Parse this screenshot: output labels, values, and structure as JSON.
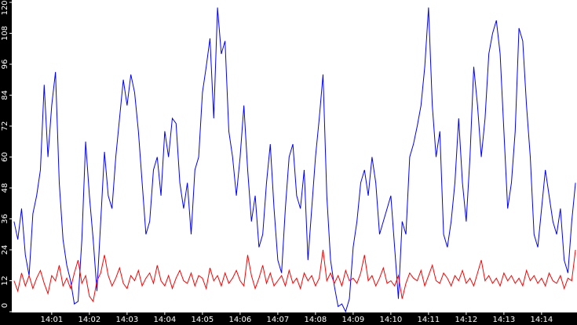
{
  "chart_data": {
    "type": "line",
    "x": [
      0,
      0.1,
      0.2,
      0.3,
      0.4,
      0.5,
      0.6,
      0.7,
      0.8,
      0.9,
      1,
      1.1,
      1.2,
      1.3,
      1.4,
      1.5,
      1.6,
      1.7,
      1.8,
      1.9,
      2,
      2.1,
      2.2,
      2.3,
      2.4,
      2.5,
      2.6,
      2.7,
      2.8,
      2.9,
      3,
      3.1,
      3.2,
      3.3,
      3.4,
      3.5,
      3.6,
      3.7,
      3.8,
      3.9,
      4,
      4.1,
      4.2,
      4.3,
      4.4,
      4.5,
      4.6,
      4.7,
      4.8,
      4.9,
      5,
      5.1,
      5.2,
      5.3,
      5.4,
      5.5,
      5.6,
      5.7,
      5.8,
      5.9,
      6,
      6.1,
      6.2,
      6.3,
      6.4,
      6.5,
      6.6,
      6.7,
      6.8,
      6.9,
      7,
      7.1,
      7.2,
      7.3,
      7.4,
      7.5,
      7.6,
      7.7,
      7.8,
      7.9,
      8,
      8.1,
      8.2,
      8.3,
      8.4,
      8.5,
      8.6,
      8.7,
      8.8,
      8.9,
      9,
      9.1,
      9.2,
      9.3,
      9.4,
      9.5,
      9.6,
      9.7,
      9.8,
      9.9,
      10,
      10.1,
      10.2,
      10.3,
      10.4,
      10.5,
      10.6,
      10.7,
      10.8,
      10.9,
      11,
      11.1,
      11.2,
      11.3,
      11.4,
      11.5,
      11.6,
      11.7,
      11.8,
      11.9,
      12,
      12.1,
      12.2,
      12.3,
      12.4,
      12.5,
      12.6,
      12.7,
      12.8,
      12.9,
      13,
      13.1,
      13.2,
      13.3,
      13.4,
      13.5,
      13.6,
      13.7,
      13.8,
      13.9,
      14,
      14.1,
      14.2,
      14.3,
      14.4,
      14.5,
      14.6,
      14.7,
      14.8,
      14.9
    ],
    "series": [
      {
        "color": "#0000ff",
        "values": [
          35,
          28,
          40,
          22,
          14,
          38,
          45,
          55,
          88,
          60,
          80,
          93,
          50,
          28,
          18,
          12,
          3,
          4,
          28,
          66,
          45,
          28,
          8,
          35,
          62,
          45,
          40,
          60,
          75,
          90,
          80,
          92,
          85,
          70,
          50,
          30,
          35,
          55,
          60,
          45,
          70,
          60,
          75,
          73,
          50,
          40,
          50,
          30,
          55,
          60,
          85,
          95,
          106,
          75,
          118,
          100,
          105,
          70,
          60,
          45,
          60,
          80,
          55,
          35,
          45,
          25,
          30,
          50,
          65,
          40,
          20,
          15,
          40,
          60,
          65,
          45,
          40,
          55,
          20,
          40,
          60,
          75,
          92,
          45,
          20,
          10,
          2,
          3,
          0,
          5,
          25,
          35,
          50,
          55,
          45,
          60,
          50,
          30,
          35,
          40,
          45,
          25,
          5,
          35,
          30,
          60,
          65,
          72,
          80,
          95,
          118,
          80,
          60,
          70,
          30,
          25,
          35,
          50,
          75,
          50,
          35,
          60,
          95,
          80,
          60,
          75,
          100,
          108,
          113,
          100,
          70,
          40,
          50,
          70,
          110,
          105,
          80,
          60,
          30,
          25,
          40,
          55,
          45,
          35,
          30,
          40,
          20,
          15,
          35,
          50
        ]
      },
      {
        "color": "#ff0000",
        "values": [
          12,
          8,
          15,
          10,
          14,
          9,
          13,
          16,
          11,
          7,
          14,
          12,
          18,
          10,
          13,
          9,
          15,
          20,
          11,
          14,
          6,
          4,
          12,
          15,
          22,
          14,
          10,
          13,
          17,
          11,
          9,
          14,
          12,
          16,
          10,
          13,
          15,
          11,
          18,
          12,
          10,
          14,
          9,
          13,
          16,
          12,
          11,
          15,
          10,
          14,
          13,
          9,
          17,
          12,
          14,
          10,
          15,
          11,
          13,
          16,
          12,
          10,
          22,
          14,
          9,
          13,
          18,
          11,
          15,
          10,
          12,
          14,
          10,
          16,
          11,
          13,
          9,
          15,
          12,
          14,
          10,
          13,
          24,
          12,
          15,
          11,
          14,
          10,
          16,
          12,
          13,
          11,
          15,
          22,
          12,
          14,
          10,
          13,
          17,
          11,
          12,
          10,
          14,
          5,
          11,
          15,
          13,
          12,
          16,
          10,
          14,
          18,
          12,
          11,
          15,
          13,
          10,
          14,
          12,
          16,
          11,
          13,
          10,
          15,
          20,
          12,
          14,
          11,
          13,
          10,
          15,
          12,
          14,
          11,
          13,
          10,
          16,
          12,
          14,
          11,
          13,
          10,
          15,
          12,
          11,
          14,
          9,
          13,
          12,
          24
        ]
      }
    ],
    "xlim": [
      -0.06,
      14.94
    ],
    "xticks": [
      {
        "value": 1,
        "label": "14:01"
      },
      {
        "value": 2,
        "label": "14:02"
      },
      {
        "value": 3,
        "label": "14:03"
      },
      {
        "value": 4,
        "label": "14:04"
      },
      {
        "value": 5,
        "label": "14:05"
      },
      {
        "value": 6,
        "label": "14:06"
      },
      {
        "value": 7,
        "label": "14:07"
      },
      {
        "value": 8,
        "label": "14:08"
      },
      {
        "value": 9,
        "label": "14:09"
      },
      {
        "value": 10,
        "label": "14:10"
      },
      {
        "value": 11,
        "label": "14:11"
      },
      {
        "value": 12,
        "label": "14:12"
      },
      {
        "value": 13,
        "label": "14:13"
      },
      {
        "value": 14,
        "label": "14:14"
      }
    ],
    "ylim": [
      0,
      120
    ],
    "yticks": [
      0,
      12,
      24,
      36,
      48,
      60,
      72,
      84,
      96,
      108,
      120
    ]
  }
}
